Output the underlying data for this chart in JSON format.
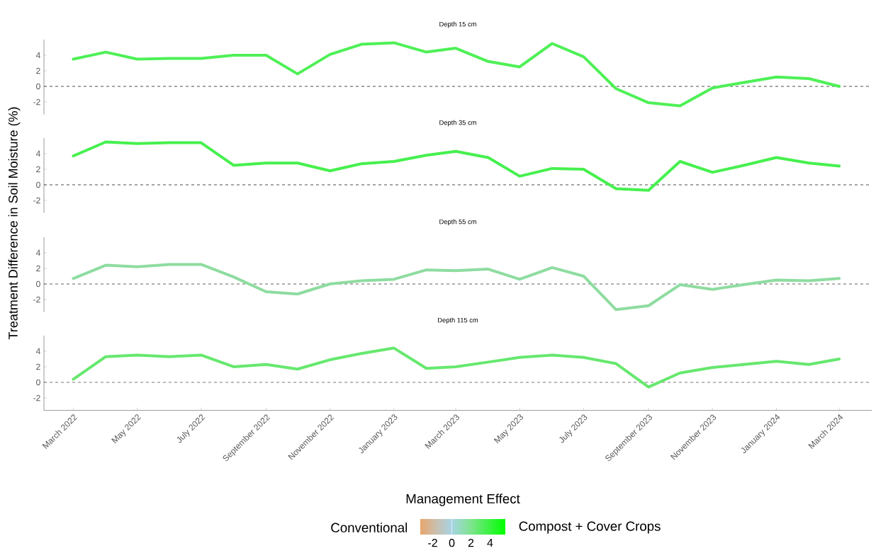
{
  "chart_data": [
    {
      "type": "line",
      "title": "Depth 15 cm",
      "ylabel": "Treatment Difference in Soil Moisture (%)",
      "x": [
        "2022-03",
        "2022-04",
        "2022-05",
        "2022-06",
        "2022-07",
        "2022-08",
        "2022-09",
        "2022-10",
        "2022-11",
        "2022-12",
        "2023-01",
        "2023-02",
        "2023-03",
        "2023-04",
        "2023-05",
        "2023-06",
        "2023-07",
        "2023-08",
        "2023-09",
        "2023-10",
        "2023-11",
        "2023-12",
        "2024-01",
        "2024-02",
        "2024-03"
      ],
      "values": [
        3.5,
        4.4,
        3.5,
        3.6,
        3.6,
        4.0,
        4.0,
        1.6,
        4.1,
        5.4,
        5.6,
        4.4,
        4.9,
        3.2,
        2.5,
        5.5,
        3.8,
        -0.3,
        -2.1,
        -2.5,
        -0.2,
        0.5,
        1.2,
        1.0,
        0
      ],
      "color": "#4ef056",
      "xlim": [
        "2022-02",
        "2024-04"
      ],
      "ylim": [
        -3.6,
        6
      ],
      "yticks": [
        -2,
        0,
        2,
        4
      ],
      "tick_labels": "y",
      "ref_lines": [
        {
          "axis": "y",
          "value": 0,
          "line_style": "dashed"
        }
      ]
    },
    {
      "type": "line",
      "title": "Depth 35 cm",
      "x": [
        "2022-03",
        "2022-04",
        "2022-05",
        "2022-06",
        "2022-07",
        "2022-08",
        "2022-09",
        "2022-10",
        "2022-11",
        "2022-12",
        "2023-01",
        "2023-02",
        "2023-03",
        "2023-04",
        "2023-05",
        "2023-06",
        "2023-07",
        "2023-08",
        "2023-09",
        "2023-10",
        "2023-11",
        "2023-12",
        "2024-01",
        "2024-02",
        "2024-03"
      ],
      "values": [
        3.7,
        5.5,
        5.3,
        5.4,
        5.4,
        2.5,
        2.8,
        2.8,
        1.8,
        2.7,
        3.0,
        3.8,
        4.3,
        3.5,
        1.1,
        2.1,
        2.0,
        -0.5,
        -0.7,
        3.0,
        1.6,
        2.5,
        3.5,
        2.8,
        2.4
      ],
      "color": "#46f04e",
      "xlim": [
        "2022-02",
        "2024-04"
      ],
      "ylim": [
        -3.6,
        6
      ],
      "yticks": [
        -2,
        0,
        2,
        4
      ],
      "tick_labels": "y",
      "ref_lines": [
        {
          "axis": "y",
          "value": 0,
          "line_style": "dashed"
        }
      ]
    },
    {
      "type": "line",
      "title": "Depth 55 cm",
      "x": [
        "2022-03",
        "2022-04",
        "2022-05",
        "2022-06",
        "2022-07",
        "2022-08",
        "2022-09",
        "2022-10",
        "2022-11",
        "2022-12",
        "2023-01",
        "2023-02",
        "2023-03",
        "2023-04",
        "2023-05",
        "2023-06",
        "2023-07",
        "2023-08",
        "2023-09",
        "2023-10",
        "2023-11",
        "2023-12",
        "2024-01",
        "2024-02",
        "2024-03"
      ],
      "values": [
        0.7,
        2.4,
        2.2,
        2.5,
        2.5,
        0.9,
        -1.0,
        -1.3,
        0,
        0.4,
        0.6,
        1.8,
        1.7,
        1.9,
        0.6,
        2.1,
        1.0,
        -3.3,
        -2.8,
        -0.1,
        -0.7,
        -0.1,
        0.5,
        0.4,
        0.7
      ],
      "color": "#8edca0",
      "xlim": [
        "2022-02",
        "2024-04"
      ],
      "ylim": [
        -3.6,
        6
      ],
      "yticks": [
        -2,
        0,
        2,
        4
      ],
      "tick_labels": "y",
      "ref_lines": [
        {
          "axis": "y",
          "value": 0,
          "line_style": "dashed"
        }
      ]
    },
    {
      "type": "line",
      "title": "Depth 115 cm",
      "x": [
        "2022-03",
        "2022-04",
        "2022-05",
        "2022-06",
        "2022-07",
        "2022-08",
        "2022-09",
        "2022-10",
        "2022-11",
        "2022-12",
        "2023-01",
        "2023-02",
        "2023-03",
        "2023-04",
        "2023-05",
        "2023-06",
        "2023-07",
        "2023-08",
        "2023-09",
        "2023-10",
        "2023-11",
        "2023-12",
        "2024-01",
        "2024-02",
        "2024-03"
      ],
      "values": [
        0.4,
        3.3,
        3.5,
        3.3,
        3.5,
        2.0,
        2.3,
        1.7,
        2.9,
        3.7,
        4.4,
        1.8,
        2.0,
        2.6,
        3.2,
        3.5,
        3.2,
        2.4,
        -0.6,
        1.2,
        1.9,
        2.3,
        2.7,
        2.3,
        3.0
      ],
      "color": "#66e86e",
      "xlim": [
        "2022-02",
        "2024-04"
      ],
      "ylim": [
        -3.6,
        6
      ],
      "yticks": [
        -2,
        0,
        2,
        4
      ],
      "xticks": [
        {
          "value": "2022-03",
          "label": "March 2022"
        },
        {
          "value": "2022-05",
          "label": "May 2022"
        },
        {
          "value": "2022-07",
          "label": "July 2022"
        },
        {
          "value": "2022-09",
          "label": "September 2022"
        },
        {
          "value": "2022-11",
          "label": "November 2022"
        },
        {
          "value": "2023-01",
          "label": "January 2023"
        },
        {
          "value": "2023-03",
          "label": "March 2023"
        },
        {
          "value": "2023-05",
          "label": "May 2023"
        },
        {
          "value": "2023-07",
          "label": "July 2023"
        },
        {
          "value": "2023-09",
          "label": "September 2023"
        },
        {
          "value": "2023-11",
          "label": "November 2023"
        },
        {
          "value": "2024-01",
          "label": "January 2024"
        },
        {
          "value": "2024-03",
          "label": "March 2024"
        }
      ],
      "ref_lines": [
        {
          "axis": "y",
          "value": 0,
          "line_style": "dashed"
        }
      ],
      "clabel": "Management Effect",
      "clim": [
        -3.3,
        5.6
      ],
      "cticks": [
        -2,
        0,
        2,
        4
      ],
      "annotations": [
        "Conventional",
        "Compost + Cover Crops"
      ]
    }
  ]
}
